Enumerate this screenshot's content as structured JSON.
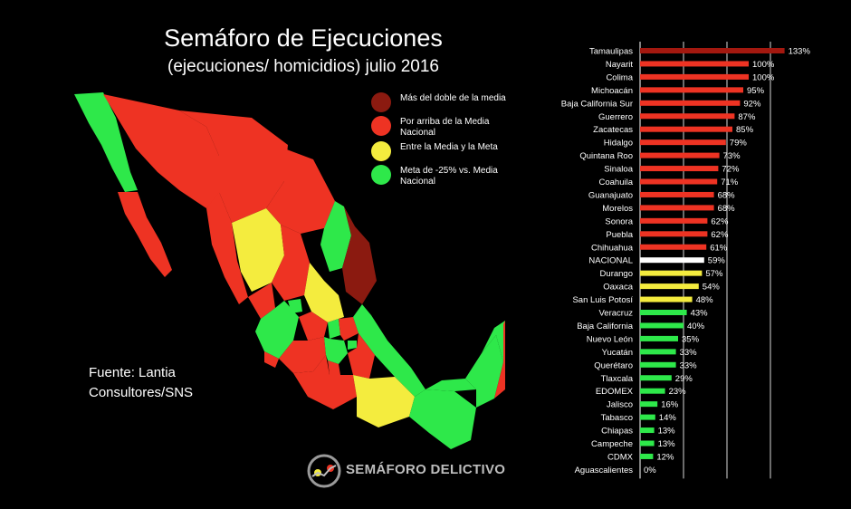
{
  "title": "Semáforo de Ejecuciones",
  "subtitle": "(ejecuciones/ homicidios) julio 2016",
  "legend": [
    {
      "label": "Más del doble de la media",
      "color": "#8b1a10"
    },
    {
      "label": "Por arriba de la Media Nacional",
      "color": "#ee3323"
    },
    {
      "label": "Entre la Media y la Meta",
      "color": "#f4ec3e"
    },
    {
      "label": "Meta de -25% vs. Media Nacional",
      "color": "#2ee84a"
    }
  ],
  "source": "Fuente: Lantia Consultores/SNS",
  "logo_text": "SEMÁFORO DELICTIVO",
  "chart_data": {
    "type": "bar",
    "orientation": "horizontal",
    "categories": [
      "Tamaulipas",
      "Nayarit",
      "Colima",
      "Michoacán",
      "Baja California Sur",
      "Guerrero",
      "Zacatecas",
      "Hidalgo",
      "Quintana Roo",
      "Sinaloa",
      "Coahuila",
      "Guanajuato",
      "Morelos",
      "Sonora",
      "Puebla",
      "Chihuahua",
      "NACIONAL",
      "Durango",
      "Oaxaca",
      "San Luis Potosí",
      "Veracruz",
      "Baja California",
      "Nuevo León",
      "Yucatán",
      "Querétaro",
      "Tlaxcala",
      "EDOMEX",
      "Jalisco",
      "Tabasco",
      "Chiapas",
      "Campeche",
      "CDMX",
      "Aguascalientes"
    ],
    "values": [
      133,
      100,
      100,
      95,
      92,
      87,
      85,
      79,
      73,
      72,
      71,
      68,
      68,
      62,
      62,
      61,
      59,
      57,
      54,
      48,
      43,
      40,
      35,
      33,
      33,
      29,
      23,
      16,
      14,
      13,
      13,
      12,
      0
    ],
    "labels": [
      "133%",
      "100%",
      "100%",
      "95%",
      "92%",
      "87%",
      "85%",
      "79%",
      "73%",
      "72%",
      "71%",
      "68%",
      "68%",
      "62%",
      "62%",
      "61%",
      "59%",
      "57%",
      "54%",
      "48%",
      "43%",
      "40%",
      "35%",
      "33%",
      "33%",
      "29%",
      "23%",
      "16%",
      "14%",
      "13%",
      "13%",
      "12%",
      "0%"
    ],
    "colors": [
      "#a3180f",
      "#ee3323",
      "#ee3323",
      "#ee3323",
      "#ee3323",
      "#ee3323",
      "#ee3323",
      "#ee3323",
      "#ee3323",
      "#ee3323",
      "#ee3323",
      "#ee3323",
      "#ee3323",
      "#ee3323",
      "#ee3323",
      "#ee3323",
      "#ffffff",
      "#f4ec3e",
      "#f4ec3e",
      "#f4ec3e",
      "#2ee84a",
      "#2ee84a",
      "#2ee84a",
      "#2ee84a",
      "#2ee84a",
      "#2ee84a",
      "#2ee84a",
      "#2ee84a",
      "#2ee84a",
      "#2ee84a",
      "#2ee84a",
      "#2ee84a",
      "#2ee84a"
    ],
    "xlim": [
      0,
      133
    ],
    "gridlines": [
      0,
      40,
      80,
      120
    ],
    "grid": true
  }
}
